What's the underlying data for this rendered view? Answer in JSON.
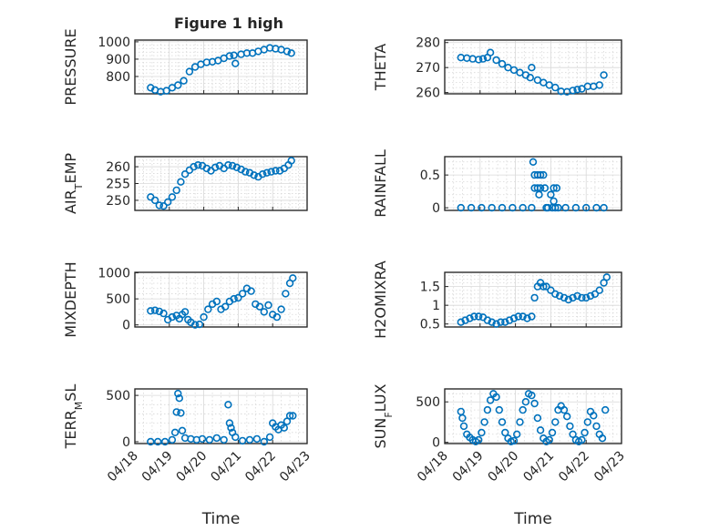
{
  "figure": {
    "title": "Figure 1 high"
  },
  "colors": {
    "marker": "#0072BD",
    "axes": "#262626",
    "grid": "#d8d8d8",
    "background": "#ffffff"
  },
  "chart_data": [
    {
      "type": "scatter",
      "ylabel": "PRESSURE",
      "xlabel": "",
      "title": "Figure 1 high",
      "xlim": [
        "04/18",
        "04/23"
      ],
      "ylim": [
        700,
        1010
      ],
      "yticks": [
        {
          "v": 800,
          "label": "800"
        },
        {
          "v": 900,
          "label": "900"
        },
        {
          "v": 1000,
          "label": "1000"
        }
      ],
      "grid": true,
      "marker": "circle",
      "x": [
        "04/18 11:00",
        "04/18 14:00",
        "04/18 18:00",
        "04/18 22:00",
        "04/19 02:00",
        "04/19 06:00",
        "04/19 10:00",
        "04/19 14:00",
        "04/19 18:00",
        "04/19 22:00",
        "04/20 02:00",
        "04/20 06:00",
        "04/20 10:00",
        "04/20 14:00",
        "04/20 18:00",
        "04/20 21:00",
        "04/20 22:00",
        "04/21 02:00",
        "04/21 06:00",
        "04/21 10:00",
        "04/21 14:00",
        "04/21 18:00",
        "04/21 22:00",
        "04/22 02:00",
        "04/22 06:00",
        "04/22 10:00",
        "04/22 13:00"
      ],
      "y": [
        735,
        722,
        712,
        718,
        735,
        750,
        775,
        828,
        855,
        870,
        882,
        885,
        892,
        905,
        918,
        922,
        875,
        928,
        935,
        935,
        945,
        955,
        965,
        960,
        955,
        945,
        935
      ]
    },
    {
      "type": "scatter",
      "ylabel": "THETA",
      "xlabel": "",
      "xlim": [
        "04/18",
        "04/23"
      ],
      "ylim": [
        259.5,
        281
      ],
      "yticks": [
        {
          "v": 260,
          "label": "260"
        },
        {
          "v": 270,
          "label": "270"
        },
        {
          "v": 280,
          "label": "280"
        }
      ],
      "grid": true,
      "marker": "circle",
      "x": [
        "04/18 11:00",
        "04/18 15:00",
        "04/18 19:00",
        "04/18 23:00",
        "04/19 02:00",
        "04/19 05:00",
        "04/19 07:00",
        "04/19 11:00",
        "04/19 15:00",
        "04/19 19:00",
        "04/19 23:00",
        "04/20 03:00",
        "04/20 07:00",
        "04/20 10:00",
        "04/20 11:00",
        "04/20 15:00",
        "04/20 19:00",
        "04/20 23:00",
        "04/21 03:00",
        "04/21 07:00",
        "04/21 11:00",
        "04/21 15:00",
        "04/21 18:00",
        "04/21 21:00",
        "04/22 01:00",
        "04/22 05:00",
        "04/22 09:00",
        "04/22 12:00"
      ],
      "y": [
        274,
        273.8,
        273.5,
        273.2,
        273.5,
        274,
        276,
        273,
        271.5,
        270,
        269,
        268,
        267,
        266,
        270,
        265,
        264,
        263,
        262,
        260.5,
        260.3,
        260.8,
        261.2,
        261.5,
        262.5,
        262.5,
        263,
        267
      ]
    },
    {
      "type": "scatter",
      "ylabel": "AIR_TEMP",
      "xlabel": "",
      "xlim": [
        "04/18",
        "04/23"
      ],
      "ylim": [
        247,
        263
      ],
      "yticks": [
        {
          "v": 250,
          "label": "250"
        },
        {
          "v": 255,
          "label": "255"
        },
        {
          "v": 260,
          "label": "260"
        }
      ],
      "grid": true,
      "marker": "circle",
      "x": [
        "04/18 11:00",
        "04/18 14:00",
        "04/18 17:00",
        "04/18 20:00",
        "04/18 23:00",
        "04/19 02:00",
        "04/19 05:00",
        "04/19 08:00",
        "04/19 11:00",
        "04/19 14:00",
        "04/19 17:00",
        "04/19 20:00",
        "04/19 23:00",
        "04/20 02:00",
        "04/20 05:00",
        "04/20 08:00",
        "04/20 11:00",
        "04/20 14:00",
        "04/20 17:00",
        "04/20 20:00",
        "04/20 23:00",
        "04/21 02:00",
        "04/21 05:00",
        "04/21 08:00",
        "04/21 11:00",
        "04/21 14:00",
        "04/21 17:00",
        "04/21 20:00",
        "04/21 23:00",
        "04/22 02:00",
        "04/22 05:00",
        "04/22 08:00",
        "04/22 11:00",
        "04/22 13:00"
      ],
      "y": [
        251,
        250,
        248.5,
        248.3,
        249.5,
        251,
        253,
        255.5,
        257.8,
        259,
        260,
        260.5,
        260.3,
        259.5,
        258.8,
        259.8,
        260.3,
        259.5,
        260.5,
        260.3,
        259.8,
        259.2,
        258.5,
        258.2,
        257.5,
        257,
        257.8,
        258.2,
        258.5,
        258.8,
        258.8,
        259.5,
        260.5,
        261.8
      ]
    },
    {
      "type": "scatter",
      "ylabel": "RAINFALL",
      "xlabel": "",
      "xlim": [
        "04/18",
        "04/23"
      ],
      "ylim": [
        -0.04,
        0.78
      ],
      "yticks": [
        {
          "v": 0,
          "label": "0"
        },
        {
          "v": 0.5,
          "label": "0.5"
        }
      ],
      "grid": true,
      "marker": "circle",
      "x": [
        "04/18 11:00",
        "04/18 18:00",
        "04/19 01:00",
        "04/19 08:00",
        "04/19 15:00",
        "04/19 22:00",
        "04/20 05:00",
        "04/20 11:00",
        "04/20 12:00",
        "04/20 13:00",
        "04/20 13:00",
        "04/20 15:00",
        "04/20 15:00",
        "04/20 16:00",
        "04/20 17:00",
        "04/20 17:00",
        "04/20 19:00",
        "04/20 20:00",
        "04/20 21:00",
        "04/20 22:00",
        "04/21 00:00",
        "04/21 01:00",
        "04/21 02:00",
        "04/21 02:00",
        "04/21 03:00",
        "04/21 04:00",
        "04/21 05:00",
        "04/21 10:00",
        "04/21 17:00",
        "04/22 00:00",
        "04/22 07:00",
        "04/22 12:00"
      ],
      "y": [
        0,
        0,
        0,
        0,
        0,
        0,
        0,
        0,
        0.7,
        0.3,
        0.5,
        0.3,
        0.5,
        0.2,
        0.5,
        0.3,
        0.5,
        0.3,
        0,
        0,
        0.2,
        0,
        0.3,
        0.1,
        0,
        0.3,
        0,
        0,
        0,
        0,
        0,
        0
      ]
    },
    {
      "type": "scatter",
      "ylabel": "MIXDEPTH",
      "xlabel": "",
      "xlim": [
        "04/18",
        "04/23"
      ],
      "ylim": [
        -40,
        1010
      ],
      "yticks": [
        {
          "v": 0,
          "label": "0"
        },
        {
          "v": 500,
          "label": "500"
        },
        {
          "v": 1000,
          "label": "1000"
        }
      ],
      "grid": true,
      "marker": "circle",
      "x": [
        "04/18 11:00",
        "04/18 14:00",
        "04/18 17:00",
        "04/18 20:00",
        "04/18 23:00",
        "04/19 02:00",
        "04/19 05:00",
        "04/19 07:00",
        "04/19 09:00",
        "04/19 11:00",
        "04/19 13:00",
        "04/19 15:00",
        "04/19 18:00",
        "04/19 21:00",
        "04/20 00:00",
        "04/20 03:00",
        "04/20 06:00",
        "04/20 09:00",
        "04/20 12:00",
        "04/20 15:00",
        "04/20 18:00",
        "04/20 21:00",
        "04/21 00:00",
        "04/21 03:00",
        "04/21 06:00",
        "04/21 09:00",
        "04/21 12:00",
        "04/21 15:00",
        "04/21 18:00",
        "04/21 21:00",
        "04/22 00:00",
        "04/22 03:00",
        "04/22 06:00",
        "04/22 09:00",
        "04/22 12:00",
        "04/22 14:00"
      ],
      "y": [
        270,
        280,
        260,
        220,
        100,
        150,
        180,
        120,
        200,
        250,
        100,
        50,
        0,
        10,
        150,
        300,
        400,
        450,
        300,
        350,
        450,
        500,
        520,
        600,
        700,
        650,
        400,
        350,
        250,
        380,
        200,
        150,
        300,
        600,
        800,
        900
      ]
    },
    {
      "type": "scatter",
      "ylabel": "H2OMIXRA",
      "xlabel": "",
      "xlim": [
        "04/18",
        "04/23"
      ],
      "ylim": [
        0.42,
        1.88
      ],
      "yticks": [
        {
          "v": 0.5,
          "label": "0.5"
        },
        {
          "v": 1,
          "label": "1"
        },
        {
          "v": 1.5,
          "label": "1.5"
        }
      ],
      "grid": true,
      "marker": "circle",
      "x": [
        "04/18 11:00",
        "04/18 14:00",
        "04/18 17:00",
        "04/18 20:00",
        "04/18 23:00",
        "04/19 02:00",
        "04/19 05:00",
        "04/19 08:00",
        "04/19 11:00",
        "04/19 14:00",
        "04/19 17:00",
        "04/19 20:00",
        "04/19 23:00",
        "04/20 02:00",
        "04/20 05:00",
        "04/20 08:00",
        "04/20 11:00",
        "04/20 13:00",
        "04/20 15:00",
        "04/20 17:00",
        "04/20 19:00",
        "04/20 21:00",
        "04/21 00:00",
        "04/21 03:00",
        "04/21 06:00",
        "04/21 09:00",
        "04/21 12:00",
        "04/21 15:00",
        "04/21 18:00",
        "04/21 21:00",
        "04/22 00:00",
        "04/22 03:00",
        "04/22 06:00",
        "04/22 09:00",
        "04/22 12:00",
        "04/22 14:00"
      ],
      "y": [
        0.55,
        0.6,
        0.65,
        0.7,
        0.7,
        0.68,
        0.6,
        0.55,
        0.5,
        0.55,
        0.55,
        0.6,
        0.65,
        0.7,
        0.7,
        0.65,
        0.7,
        1.2,
        1.5,
        1.6,
        1.5,
        1.5,
        1.4,
        1.3,
        1.25,
        1.2,
        1.15,
        1.2,
        1.25,
        1.2,
        1.2,
        1.25,
        1.3,
        1.4,
        1.6,
        1.75
      ]
    },
    {
      "type": "scatter",
      "ylabel": "TERR_MSL",
      "xlabel": "Time",
      "xlim": [
        "04/18",
        "04/23"
      ],
      "ylim": [
        -20,
        570
      ],
      "yticks": [
        {
          "v": 0,
          "label": "0"
        },
        {
          "v": 500,
          "label": "500"
        }
      ],
      "xticks": [
        "04/18",
        "04/19",
        "04/20",
        "04/21",
        "04/22",
        "04/23"
      ],
      "grid": true,
      "marker": "circle",
      "x": [
        "04/18 11:00",
        "04/18 16:00",
        "04/18 21:00",
        "04/19 02:00",
        "04/19 04:00",
        "04/19 05:00",
        "04/19 06:00",
        "04/19 07:00",
        "04/19 08:00",
        "04/19 09:00",
        "04/19 11:00",
        "04/19 15:00",
        "04/19 19:00",
        "04/19 23:00",
        "04/20 04:00",
        "04/20 09:00",
        "04/20 14:00",
        "04/20 17:00",
        "04/20 18:00",
        "04/20 19:00",
        "04/20 20:00",
        "04/20 22:00",
        "04/21 03:00",
        "04/21 08:00",
        "04/21 13:00",
        "04/21 18:00",
        "04/21 22:00",
        "04/22 00:00",
        "04/22 02:00",
        "04/22 04:00",
        "04/22 06:00",
        "04/22 08:00",
        "04/22 10:00",
        "04/22 12:00",
        "04/22 14:00"
      ],
      "y": [
        0,
        0,
        0,
        20,
        100,
        320,
        520,
        470,
        310,
        120,
        40,
        30,
        20,
        30,
        20,
        40,
        20,
        400,
        200,
        150,
        100,
        50,
        10,
        20,
        30,
        0,
        50,
        200,
        160,
        130,
        180,
        150,
        220,
        280,
        280
      ]
    },
    {
      "type": "scatter",
      "ylabel": "SUN_FLUX",
      "xlabel": "Time",
      "xlim": [
        "04/18",
        "04/23"
      ],
      "ylim": [
        -15,
        660
      ],
      "yticks": [
        {
          "v": 0,
          "label": "0"
        },
        {
          "v": 500,
          "label": "500"
        }
      ],
      "xticks": [
        "04/18",
        "04/19",
        "04/20",
        "04/21",
        "04/22",
        "04/23"
      ],
      "grid": true,
      "marker": "circle",
      "x": [
        "04/18 11:00",
        "04/18 12:00",
        "04/18 13:00",
        "04/18 15:00",
        "04/18 17:00",
        "04/18 19:00",
        "04/18 21:00",
        "04/18 23:00",
        "04/19 01:00",
        "04/19 03:00",
        "04/19 05:00",
        "04/19 07:00",
        "04/19 09:00",
        "04/19 11:00",
        "04/19 13:00",
        "04/19 15:00",
        "04/19 17:00",
        "04/19 19:00",
        "04/19 21:00",
        "04/19 23:00",
        "04/20 01:00",
        "04/20 03:00",
        "04/20 05:00",
        "04/20 07:00",
        "04/20 09:00",
        "04/20 11:00",
        "04/20 13:00",
        "04/20 15:00",
        "04/20 17:00",
        "04/20 19:00",
        "04/20 21:00",
        "04/20 23:00",
        "04/21 01:00",
        "04/21 03:00",
        "04/21 05:00",
        "04/21 07:00",
        "04/21 09:00",
        "04/21 11:00",
        "04/21 13:00",
        "04/21 15:00",
        "04/21 17:00",
        "04/21 19:00",
        "04/21 21:00",
        "04/21 23:00",
        "04/22 01:00",
        "04/22 03:00",
        "04/22 05:00",
        "04/22 07:00",
        "04/22 09:00",
        "04/22 11:00",
        "04/22 13:00"
      ],
      "y": [
        380,
        300,
        200,
        100,
        60,
        30,
        10,
        30,
        120,
        250,
        400,
        520,
        600,
        560,
        400,
        250,
        120,
        50,
        10,
        20,
        100,
        250,
        400,
        500,
        600,
        580,
        480,
        300,
        150,
        50,
        10,
        30,
        120,
        250,
        400,
        450,
        400,
        320,
        200,
        100,
        30,
        10,
        30,
        120,
        250,
        380,
        330,
        200,
        100,
        50,
        400
      ]
    }
  ]
}
